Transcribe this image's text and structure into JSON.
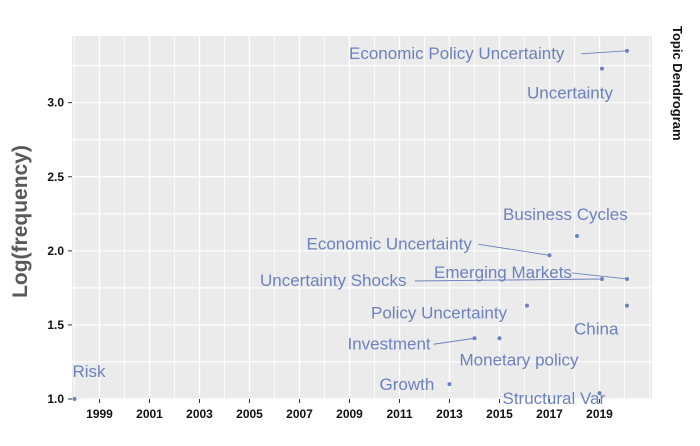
{
  "chart_data": {
    "type": "scatter",
    "side_title": "Topic Dendrogram",
    "ylabel": "Log(frequency)",
    "xlabel": "",
    "xlim": [
      1997.9,
      2021.1
    ],
    "ylim": [
      1.0,
      3.45
    ],
    "x_ticks": [
      1999,
      2001,
      2003,
      2005,
      2007,
      2009,
      2011,
      2013,
      2015,
      2017,
      2019
    ],
    "y_ticks": [
      1.0,
      1.5,
      2.0,
      2.5,
      3.0
    ],
    "y_tick_labels": [
      "1.0",
      "1.5",
      "2.0",
      "2.5",
      "3.0"
    ],
    "grid": true,
    "colors": {
      "background": "#ebebeb",
      "grid": "#ffffff",
      "points": "#6b82be",
      "labels": "#6b82be",
      "leader": "#6b82be"
    },
    "points": [
      {
        "label": "Economic Policy Uncertainty",
        "x": 2020.1,
        "y": 3.35
      },
      {
        "label": "Uncertainty",
        "x": 2019.1,
        "y": 3.23
      },
      {
        "label": "Business Cycles",
        "x": 2018.1,
        "y": 2.1
      },
      {
        "label": "Economic Uncertainty",
        "x": 2017.0,
        "y": 1.97
      },
      {
        "label": "Emerging Markets",
        "x": 2020.1,
        "y": 1.81
      },
      {
        "label": "Uncertainty Shocks",
        "x": 2019.1,
        "y": 1.81
      },
      {
        "label": "China",
        "x": 2020.1,
        "y": 1.63
      },
      {
        "label": "Policy Uncertainty",
        "x": 2016.1,
        "y": 1.63
      },
      {
        "label": "Investment",
        "x": 2014.0,
        "y": 1.41
      },
      {
        "label": "Monetary policy",
        "x": 2015.0,
        "y": 1.41
      },
      {
        "label": "Growth",
        "x": 2013.0,
        "y": 1.1
      },
      {
        "label": "Structural Var",
        "x": 2019.0,
        "y": 1.04
      },
      {
        "label": "Risk",
        "x": 1998.0,
        "y": 1.0
      }
    ]
  }
}
